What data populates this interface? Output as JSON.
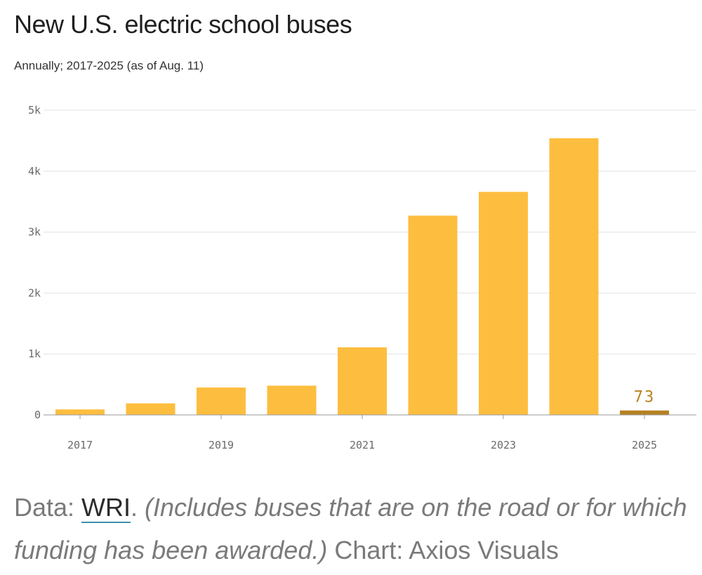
{
  "header": {
    "title": "New U.S. electric school buses",
    "subtitle": "Annually; 2017-2025 (as of Aug. 11)"
  },
  "footer": {
    "data_prefix": "Data: ",
    "source": "WRI",
    "note": "(Includes buses that are on the road or for which funding has been awarded.)",
    "credit": "Chart: Axios Visuals"
  },
  "colors": {
    "bar": "#FDBE3F",
    "highlight": "#B78122",
    "gridline": "#E3E3E3",
    "baseline": "#9A9A9A"
  },
  "chart_data": {
    "type": "bar",
    "categories": [
      "2017",
      "2018",
      "2019",
      "2020",
      "2021",
      "2022",
      "2023",
      "2024",
      "2025"
    ],
    "values": [
      90,
      190,
      450,
      480,
      1110,
      3270,
      3660,
      4540,
      73
    ],
    "x_tick_labels": [
      "2017",
      "2019",
      "2021",
      "2023",
      "2025"
    ],
    "y_ticks": [
      0,
      1000,
      2000,
      3000,
      4000,
      5000
    ],
    "y_tick_labels": [
      "0",
      "1k",
      "2k",
      "3k",
      "4k",
      "5k"
    ],
    "ylim": [
      0,
      5000
    ],
    "grid": true,
    "highlight_category": "2025",
    "data_labels": [
      {
        "category": "2025",
        "text": "73"
      }
    ]
  }
}
